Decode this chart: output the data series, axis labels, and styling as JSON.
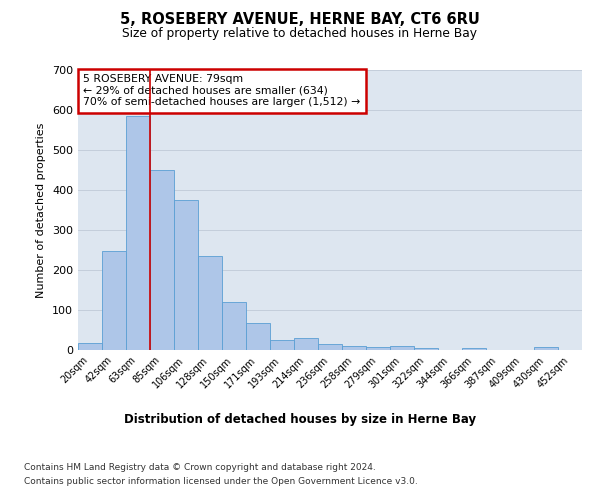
{
  "title": "5, ROSEBERY AVENUE, HERNE BAY, CT6 6RU",
  "subtitle": "Size of property relative to detached houses in Herne Bay",
  "xlabel": "Distribution of detached houses by size in Herne Bay",
  "ylabel": "Number of detached properties",
  "categories": [
    "20sqm",
    "42sqm",
    "63sqm",
    "85sqm",
    "106sqm",
    "128sqm",
    "150sqm",
    "171sqm",
    "193sqm",
    "214sqm",
    "236sqm",
    "258sqm",
    "279sqm",
    "301sqm",
    "322sqm",
    "344sqm",
    "366sqm",
    "387sqm",
    "409sqm",
    "430sqm",
    "452sqm"
  ],
  "values": [
    17,
    247,
    585,
    450,
    375,
    235,
    120,
    68,
    24,
    30,
    14,
    10,
    8,
    10,
    6,
    0,
    5,
    0,
    0,
    7,
    0
  ],
  "bar_color": "#aec6e8",
  "bar_edge_color": "#5a9fd4",
  "red_line_x": 2.5,
  "annotation_text": "5 ROSEBERY AVENUE: 79sqm\n← 29% of detached houses are smaller (634)\n70% of semi-detached houses are larger (1,512) →",
  "annotation_box_color": "#ffffff",
  "annotation_box_edge": "#cc0000",
  "ylim": [
    0,
    700
  ],
  "yticks": [
    0,
    100,
    200,
    300,
    400,
    500,
    600,
    700
  ],
  "background_color": "#dde6f0",
  "footer1": "Contains HM Land Registry data © Crown copyright and database right 2024.",
  "footer2": "Contains public sector information licensed under the Open Government Licence v3.0."
}
